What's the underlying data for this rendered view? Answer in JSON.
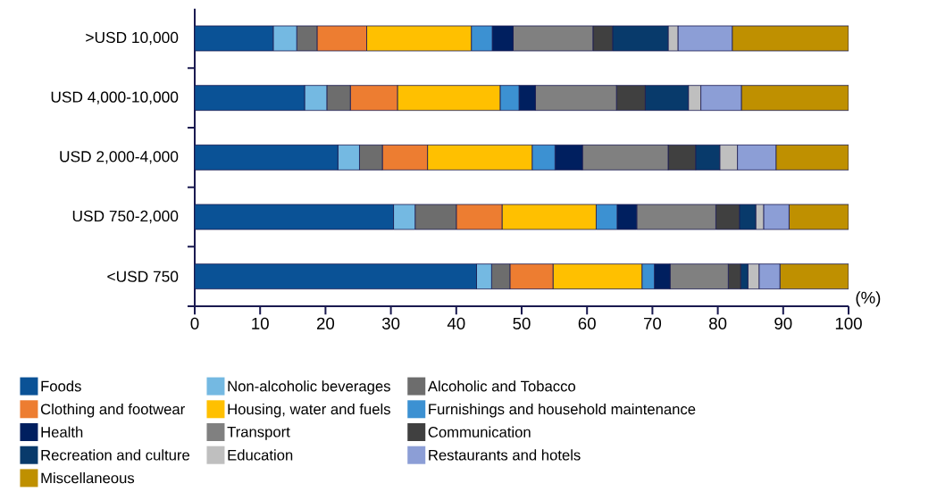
{
  "chart_data": {
    "type": "bar",
    "orientation": "horizontal",
    "stacked": true,
    "categories": [
      ">USD 10,000",
      "USD 4,000-10,000",
      "USD 2,000-4,000",
      "USD 750-2,000",
      "<USD 750"
    ],
    "xlabel": "(%)",
    "xlim": [
      0,
      100
    ],
    "xticks": [
      0,
      10,
      20,
      30,
      40,
      50,
      60,
      70,
      80,
      90,
      100
    ],
    "legend": "bottom",
    "series": [
      {
        "name": "Foods",
        "color": "#0a5296",
        "values": [
          12.0,
          16.8,
          21.9,
          30.4,
          43.1
        ]
      },
      {
        "name": "Non-alcoholic beverages",
        "color": "#74b9e2",
        "values": [
          3.6,
          3.4,
          3.3,
          3.3,
          2.3
        ]
      },
      {
        "name": "Alcoholic and Tobacco",
        "color": "#6d6d6d",
        "values": [
          3.1,
          3.6,
          3.5,
          6.3,
          2.8
        ]
      },
      {
        "name": "Clothing and footwear",
        "color": "#ed7d31",
        "values": [
          7.6,
          7.2,
          6.9,
          7.0,
          6.6
        ]
      },
      {
        "name": "Housing, water and fuels",
        "color": "#ffc000",
        "values": [
          16.0,
          15.7,
          16.0,
          14.4,
          13.6
        ]
      },
      {
        "name": "Furnishings and household maintenance",
        "color": "#3c91d2",
        "values": [
          3.2,
          2.9,
          3.5,
          3.2,
          1.9
        ]
      },
      {
        "name": "Health",
        "color": "#001f5f",
        "values": [
          3.2,
          2.5,
          4.2,
          3.0,
          2.4
        ]
      },
      {
        "name": "Transport",
        "color": "#808080",
        "values": [
          12.2,
          12.4,
          13.1,
          12.1,
          8.9
        ]
      },
      {
        "name": "Communication",
        "color": "#404040",
        "values": [
          3.0,
          4.4,
          4.2,
          3.6,
          1.9
        ]
      },
      {
        "name": "Recreation and culture",
        "color": "#083a6b",
        "values": [
          8.5,
          6.6,
          3.7,
          2.5,
          1.1
        ]
      },
      {
        "name": "Education",
        "color": "#bfbfbf",
        "values": [
          1.5,
          1.9,
          2.7,
          1.2,
          1.7
        ]
      },
      {
        "name": "Restaurants and hotels",
        "color": "#8c9ed6",
        "values": [
          8.3,
          6.2,
          5.9,
          3.9,
          3.2
        ]
      },
      {
        "name": "Miscellaneous",
        "color": "#bf9000",
        "values": [
          17.8,
          16.4,
          11.1,
          9.1,
          10.5
        ]
      }
    ]
  }
}
